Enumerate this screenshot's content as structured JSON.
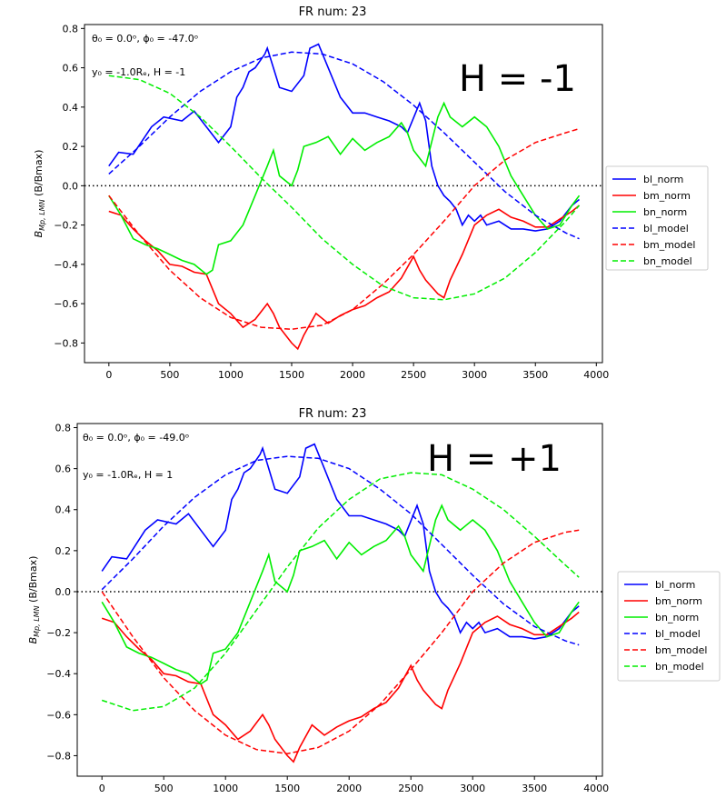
{
  "chart_data": [
    {
      "type": "line",
      "title": "FR num: 23",
      "ylabel_main": "B",
      "ylabel_sub": "Mp, LMN",
      "ylabel_rest": " (B/Bmax)",
      "annotation_line1": "θ₀ = 0.0ᵒ, ϕ₀ = -47.0ᵒ",
      "annotation_line2": "y₀ = -1.0Rₑ, H = -1",
      "big_label": "H = -1",
      "xlim": [
        -200,
        4050
      ],
      "ylim": [
        -0.9,
        0.82
      ],
      "xticks": [
        0,
        500,
        1000,
        1500,
        2000,
        2500,
        3000,
        3500,
        4000
      ],
      "xtick_labels": [
        "0",
        "500",
        "1000",
        "1500",
        "2000",
        "2500",
        "3000",
        "3500",
        "4000"
      ],
      "yticks": [
        -0.8,
        -0.6,
        -0.4,
        -0.2,
        0.0,
        0.2,
        0.4,
        0.6,
        0.8
      ],
      "ytick_labels": [
        "−0.8",
        "−0.6",
        "−0.4",
        "−0.2",
        "0.0",
        "0.2",
        "0.4",
        "0.6",
        "0.8"
      ],
      "zero_line": 0.0,
      "legend_position": "right",
      "series": [
        {
          "name": "bl_norm",
          "style": "solid",
          "color": "#0000ff",
          "x": [
            0,
            80,
            200,
            350,
            450,
            600,
            700,
            800,
            900,
            1000,
            1050,
            1100,
            1150,
            1200,
            1280,
            1300,
            1350,
            1400,
            1500,
            1600,
            1650,
            1720,
            1800,
            1900,
            2000,
            2100,
            2200,
            2300,
            2400,
            2450,
            2550,
            2600,
            2650,
            2700,
            2750,
            2800,
            2850,
            2900,
            2950,
            3000,
            3050,
            3100,
            3200,
            3300,
            3400,
            3500,
            3600,
            3700,
            3800,
            3860
          ],
          "y": [
            0.1,
            0.17,
            0.16,
            0.3,
            0.35,
            0.33,
            0.38,
            0.3,
            0.22,
            0.3,
            0.45,
            0.5,
            0.58,
            0.6,
            0.67,
            0.7,
            0.6,
            0.5,
            0.48,
            0.56,
            0.7,
            0.72,
            0.6,
            0.45,
            0.37,
            0.37,
            0.35,
            0.33,
            0.3,
            0.27,
            0.42,
            0.33,
            0.1,
            0.0,
            -0.05,
            -0.08,
            -0.12,
            -0.2,
            -0.15,
            -0.18,
            -0.15,
            -0.2,
            -0.18,
            -0.22,
            -0.22,
            -0.23,
            -0.22,
            -0.18,
            -0.1,
            -0.07
          ]
        },
        {
          "name": "bm_norm",
          "style": "solid",
          "color": "#ff0000",
          "x": [
            0,
            100,
            200,
            300,
            400,
            500,
            600,
            700,
            800,
            900,
            1000,
            1100,
            1200,
            1300,
            1350,
            1400,
            1500,
            1550,
            1600,
            1700,
            1800,
            1900,
            2000,
            2100,
            2200,
            2300,
            2400,
            2500,
            2550,
            2600,
            2700,
            2750,
            2800,
            2900,
            3000,
            3100,
            3200,
            3300,
            3400,
            3500,
            3600,
            3700,
            3800,
            3860
          ],
          "y": [
            -0.13,
            -0.15,
            -0.22,
            -0.28,
            -0.33,
            -0.4,
            -0.41,
            -0.44,
            -0.45,
            -0.6,
            -0.65,
            -0.72,
            -0.68,
            -0.6,
            -0.65,
            -0.72,
            -0.8,
            -0.83,
            -0.76,
            -0.65,
            -0.7,
            -0.66,
            -0.63,
            -0.61,
            -0.57,
            -0.54,
            -0.47,
            -0.36,
            -0.43,
            -0.48,
            -0.55,
            -0.57,
            -0.48,
            -0.35,
            -0.2,
            -0.15,
            -0.12,
            -0.16,
            -0.18,
            -0.21,
            -0.21,
            -0.17,
            -0.13,
            -0.1
          ]
        },
        {
          "name": "bn_norm",
          "style": "solid",
          "color": "#00ee00",
          "x": [
            0,
            100,
            200,
            300,
            400,
            500,
            600,
            700,
            800,
            850,
            900,
            1000,
            1100,
            1200,
            1300,
            1350,
            1400,
            1500,
            1550,
            1600,
            1700,
            1800,
            1900,
            2000,
            2100,
            2200,
            2300,
            2400,
            2450,
            2500,
            2600,
            2700,
            2750,
            2800,
            2900,
            3000,
            3100,
            3200,
            3300,
            3400,
            3500,
            3600,
            3700,
            3800,
            3860
          ],
          "y": [
            -0.05,
            -0.15,
            -0.27,
            -0.3,
            -0.32,
            -0.35,
            -0.38,
            -0.4,
            -0.45,
            -0.43,
            -0.3,
            -0.28,
            -0.2,
            -0.05,
            0.1,
            0.18,
            0.05,
            0.0,
            0.08,
            0.2,
            0.22,
            0.25,
            0.16,
            0.24,
            0.18,
            0.22,
            0.25,
            0.32,
            0.27,
            0.18,
            0.1,
            0.35,
            0.42,
            0.35,
            0.3,
            0.35,
            0.3,
            0.2,
            0.05,
            -0.05,
            -0.15,
            -0.22,
            -0.2,
            -0.1,
            -0.05
          ]
        },
        {
          "name": "bl_model",
          "style": "dashed",
          "color": "#0000ff",
          "amp": 0.68,
          "x0": 1500,
          "period_half": 3000,
          "base": -0.3
        },
        {
          "name": "bm_model",
          "style": "dashed",
          "color": "#ff0000",
          "sequence": "cos",
          "shift": 0
        },
        {
          "name": "bn_model",
          "style": "dashed",
          "color": "#00ee00"
        }
      ]
    },
    {
      "type": "line",
      "title": "FR num: 23",
      "ylabel_main": "B",
      "ylabel_sub": "Mp, LMN",
      "ylabel_rest": " (B/Bmax)",
      "annotation_line1": "θ₀ = 0.0ᵒ, ϕ₀ = -49.0ᵒ",
      "annotation_line2": "y₀ = -1.0Rₑ, H = 1",
      "big_label": "H = +1",
      "xlim": [
        -200,
        4050
      ],
      "ylim": [
        -0.9,
        0.82
      ],
      "xticks": [
        0,
        500,
        1000,
        1500,
        2000,
        2500,
        3000,
        3500,
        4000
      ],
      "xtick_labels": [
        "0",
        "500",
        "1000",
        "1500",
        "2000",
        "2500",
        "3000",
        "3500",
        "4000"
      ],
      "yticks": [
        -0.8,
        -0.6,
        -0.4,
        -0.2,
        0.0,
        0.2,
        0.4,
        0.6,
        0.8
      ],
      "ytick_labels": [
        "−0.8",
        "−0.6",
        "−0.4",
        "−0.2",
        "0.0",
        "0.2",
        "0.4",
        "0.6",
        "0.8"
      ],
      "zero_line": 0.0,
      "legend_position": "right",
      "series": [
        {
          "name": "bl_norm",
          "style": "solid",
          "color": "#0000ff"
        },
        {
          "name": "bm_norm",
          "style": "solid",
          "color": "#ff0000"
        },
        {
          "name": "bn_norm",
          "style": "solid",
          "color": "#00ee00"
        },
        {
          "name": "bl_model",
          "style": "dashed",
          "color": "#0000ff"
        },
        {
          "name": "bm_model",
          "style": "dashed",
          "color": "#ff0000"
        },
        {
          "name": "bn_model",
          "style": "dashed",
          "color": "#00ee00"
        }
      ]
    }
  ],
  "model_curves": [
    {
      "bl_model": {
        "x": [
          0,
          250,
          500,
          750,
          1000,
          1250,
          1500,
          1750,
          2000,
          2250,
          2500,
          2750,
          3000,
          3250,
          3500,
          3750,
          3860
        ],
        "y": [
          0.06,
          0.2,
          0.35,
          0.48,
          0.58,
          0.65,
          0.68,
          0.67,
          0.62,
          0.53,
          0.41,
          0.27,
          0.12,
          -0.03,
          -0.15,
          -0.24,
          -0.27
        ]
      },
      "bm_model": {
        "x": [
          0,
          250,
          500,
          750,
          1000,
          1250,
          1500,
          1750,
          2000,
          2250,
          2500,
          2750,
          3000,
          3250,
          3500,
          3750,
          3860
        ],
        "y": [
          -0.05,
          -0.25,
          -0.43,
          -0.57,
          -0.67,
          -0.72,
          -0.73,
          -0.71,
          -0.63,
          -0.5,
          -0.35,
          -0.18,
          0.0,
          0.13,
          0.22,
          0.27,
          0.29
        ]
      },
      "bn_model": {
        "x": [
          0,
          250,
          500,
          750,
          1000,
          1250,
          1500,
          1750,
          2000,
          2250,
          2500,
          2750,
          3000,
          3250,
          3500,
          3750,
          3860
        ],
        "y": [
          0.56,
          0.54,
          0.47,
          0.35,
          0.2,
          0.04,
          -0.11,
          -0.27,
          -0.4,
          -0.51,
          -0.57,
          -0.58,
          -0.55,
          -0.47,
          -0.34,
          -0.18,
          -0.1
        ]
      }
    },
    {
      "bl_model": {
        "x": [
          0,
          250,
          500,
          750,
          1000,
          1250,
          1500,
          1750,
          2000,
          2250,
          2500,
          2750,
          3000,
          3250,
          3500,
          3750,
          3860
        ],
        "y": [
          0.01,
          0.16,
          0.32,
          0.46,
          0.57,
          0.64,
          0.66,
          0.65,
          0.6,
          0.5,
          0.38,
          0.23,
          0.08,
          -0.06,
          -0.17,
          -0.24,
          -0.26
        ]
      },
      "bm_model": {
        "x": [
          0,
          250,
          500,
          750,
          1000,
          1250,
          1500,
          1750,
          2000,
          2250,
          2500,
          2750,
          3000,
          3250,
          3500,
          3750,
          3860
        ],
        "y": [
          0.0,
          -0.22,
          -0.42,
          -0.58,
          -0.7,
          -0.77,
          -0.79,
          -0.76,
          -0.68,
          -0.55,
          -0.38,
          -0.2,
          0.0,
          0.14,
          0.24,
          0.29,
          0.3
        ]
      },
      "bn_model": {
        "x": [
          0,
          250,
          500,
          750,
          1000,
          1250,
          1500,
          1750,
          2000,
          2250,
          2500,
          2750,
          3000,
          3250,
          3500,
          3750,
          3860
        ],
        "y": [
          -0.53,
          -0.58,
          -0.56,
          -0.47,
          -0.3,
          -0.09,
          0.12,
          0.31,
          0.45,
          0.55,
          0.58,
          0.57,
          0.5,
          0.4,
          0.27,
          0.13,
          0.07
        ]
      }
    }
  ],
  "measured_curves_bottom": {
    "bl_norm": {
      "x": [
        0,
        80,
        200,
        350,
        450,
        600,
        700,
        800,
        900,
        1000,
        1050,
        1100,
        1150,
        1200,
        1280,
        1300,
        1350,
        1400,
        1500,
        1600,
        1650,
        1720,
        1800,
        1900,
        2000,
        2100,
        2200,
        2300,
        2400,
        2450,
        2550,
        2600,
        2650,
        2700,
        2750,
        2800,
        2850,
        2900,
        2950,
        3000,
        3050,
        3100,
        3200,
        3300,
        3400,
        3500,
        3600,
        3700,
        3800,
        3860
      ],
      "y": [
        0.1,
        0.17,
        0.16,
        0.3,
        0.35,
        0.33,
        0.38,
        0.3,
        0.22,
        0.3,
        0.45,
        0.5,
        0.58,
        0.6,
        0.67,
        0.7,
        0.6,
        0.5,
        0.48,
        0.56,
        0.7,
        0.72,
        0.6,
        0.45,
        0.37,
        0.37,
        0.35,
        0.33,
        0.3,
        0.27,
        0.42,
        0.33,
        0.1,
        0.0,
        -0.05,
        -0.08,
        -0.12,
        -0.2,
        -0.15,
        -0.18,
        -0.15,
        -0.2,
        -0.18,
        -0.22,
        -0.22,
        -0.23,
        -0.22,
        -0.18,
        -0.1,
        -0.07
      ]
    },
    "bm_norm": {
      "x": [
        0,
        100,
        200,
        300,
        400,
        500,
        600,
        700,
        800,
        900,
        1000,
        1100,
        1200,
        1300,
        1350,
        1400,
        1500,
        1550,
        1600,
        1700,
        1800,
        1900,
        2000,
        2100,
        2200,
        2300,
        2400,
        2500,
        2550,
        2600,
        2700,
        2750,
        2800,
        2900,
        3000,
        3100,
        3200,
        3300,
        3400,
        3500,
        3600,
        3700,
        3800,
        3860
      ],
      "y": [
        -0.13,
        -0.15,
        -0.22,
        -0.28,
        -0.33,
        -0.4,
        -0.41,
        -0.44,
        -0.45,
        -0.6,
        -0.65,
        -0.72,
        -0.68,
        -0.6,
        -0.65,
        -0.72,
        -0.8,
        -0.83,
        -0.76,
        -0.65,
        -0.7,
        -0.66,
        -0.63,
        -0.61,
        -0.57,
        -0.54,
        -0.47,
        -0.36,
        -0.43,
        -0.48,
        -0.55,
        -0.57,
        -0.48,
        -0.35,
        -0.2,
        -0.15,
        -0.12,
        -0.16,
        -0.18,
        -0.21,
        -0.21,
        -0.17,
        -0.13,
        -0.1
      ]
    },
    "bn_norm": {
      "x": [
        0,
        100,
        200,
        300,
        400,
        500,
        600,
        700,
        800,
        850,
        900,
        1000,
        1100,
        1200,
        1300,
        1350,
        1400,
        1500,
        1550,
        1600,
        1700,
        1800,
        1900,
        2000,
        2100,
        2200,
        2300,
        2400,
        2450,
        2500,
        2600,
        2700,
        2750,
        2800,
        2900,
        3000,
        3100,
        3200,
        3300,
        3400,
        3500,
        3600,
        3700,
        3800,
        3860
      ],
      "y": [
        -0.05,
        -0.15,
        -0.27,
        -0.3,
        -0.32,
        -0.35,
        -0.38,
        -0.4,
        -0.45,
        -0.43,
        -0.3,
        -0.28,
        -0.2,
        -0.05,
        0.1,
        0.18,
        0.05,
        0.0,
        0.08,
        0.2,
        0.22,
        0.25,
        0.16,
        0.24,
        0.18,
        0.22,
        0.25,
        0.32,
        0.27,
        0.18,
        0.1,
        0.35,
        0.42,
        0.35,
        0.3,
        0.35,
        0.3,
        0.2,
        0.05,
        -0.05,
        -0.15,
        -0.22,
        -0.2,
        -0.1,
        -0.05
      ]
    }
  }
}
